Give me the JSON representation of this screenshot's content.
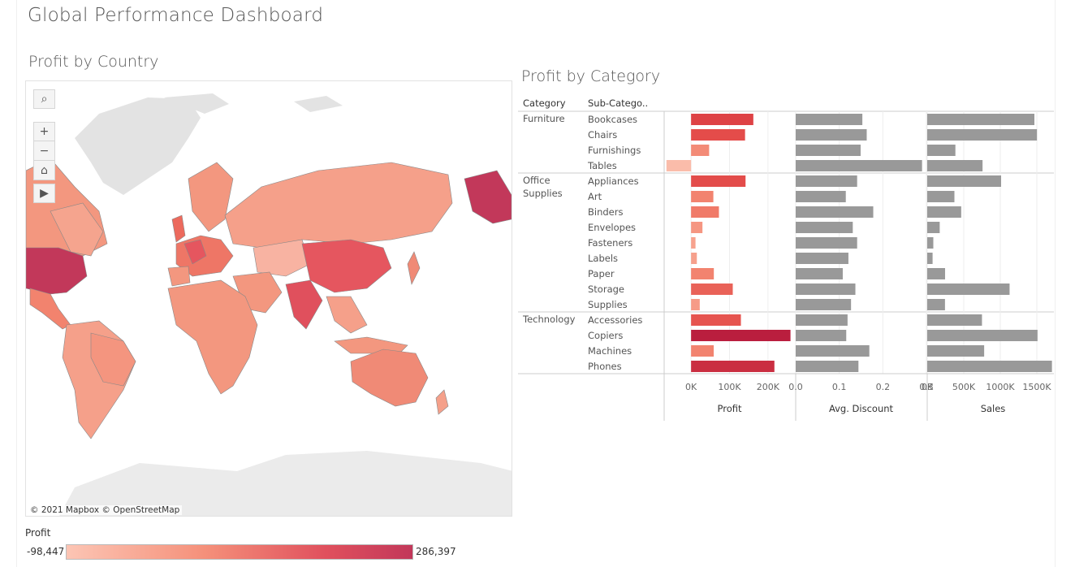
{
  "dashboard": {
    "title": "Global Performance Dashboard"
  },
  "map": {
    "title": "Profit by Country",
    "attribution": "© 2021 Mapbox  © OpenStreetMap",
    "tools": {
      "search_icon": "search-icon",
      "zoom_in": "+",
      "zoom_out": "−",
      "home": "home-icon",
      "play": "play-icon"
    }
  },
  "legend": {
    "title": "Profit",
    "min": "-98,447",
    "max": "286,397"
  },
  "chart_data": {
    "type": "bar",
    "title": "Profit by Category",
    "headers": {
      "category": "Category",
      "subcategory": "Sub-Catego.."
    },
    "groups": [
      {
        "name": "Furniture",
        "count": 4
      },
      {
        "name": "Office\nSupplies",
        "count": 9
      },
      {
        "name": "Technology",
        "count": 4
      }
    ],
    "categories": [
      "Bookcases",
      "Chairs",
      "Furnishings",
      "Tables",
      "Appliances",
      "Art",
      "Binders",
      "Envelopes",
      "Fasteners",
      "Labels",
      "Paper",
      "Storage",
      "Supplies",
      "Accessories",
      "Copiers",
      "Machines",
      "Phones"
    ],
    "series": [
      {
        "name": "Profit",
        "values": [
          161924,
          140396,
          46967,
          -64083,
          141681,
          57954,
          72449,
          29602,
          11526,
          15010,
          59207,
          108461,
          22584,
          129627,
          258568,
          58868,
          216717
        ],
        "ticks": [
          "0K",
          "100K",
          "200K"
        ],
        "tick_values": [
          0,
          100000,
          200000
        ],
        "range": [
          -70000,
          270000
        ]
      },
      {
        "name": "Avg. Discount",
        "values": [
          0.153,
          0.163,
          0.149,
          0.29,
          0.141,
          0.115,
          0.178,
          0.131,
          0.141,
          0.121,
          0.108,
          0.137,
          0.127,
          0.119,
          0.116,
          0.169,
          0.144
        ],
        "ticks": [
          "0.0",
          "0.1",
          "0.2",
          "0.3"
        ],
        "tick_values": [
          0,
          0.1,
          0.2,
          0.3
        ],
        "range": [
          0,
          0.3
        ]
      },
      {
        "name": "Sales",
        "values": [
          1466572,
          1501682,
          385578,
          757036,
          1011065,
          372092,
          464877,
          170904,
          83243,
          73350,
          244292,
          1127086,
          243074,
          749238,
          1509436,
          779060,
          1706825
        ],
        "ticks": [
          "0K",
          "500K",
          "1000K",
          "1500K"
        ],
        "tick_values": [
          0,
          500000,
          1000000,
          1500000
        ],
        "range": [
          0,
          1800000
        ]
      }
    ],
    "colors": {
      "bar_gray": "#999999",
      "profit_low": "#fbb9ab",
      "profit_high": "#b5153e"
    }
  }
}
